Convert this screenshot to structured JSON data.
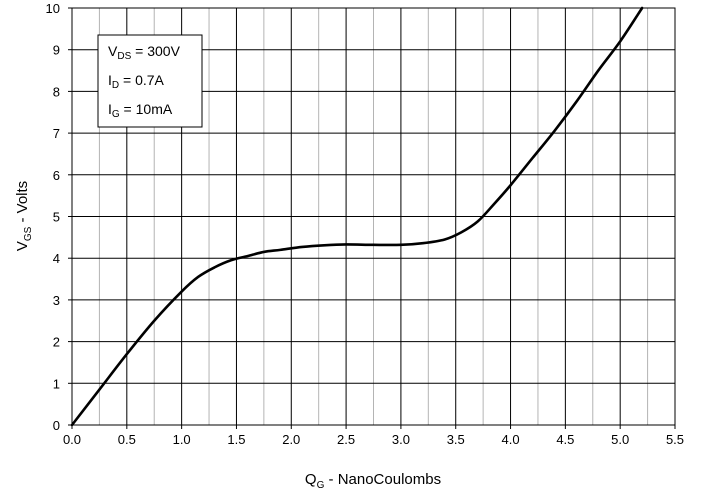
{
  "chart_data": {
    "type": "line",
    "title": "",
    "xlabel": {
      "main": "Q",
      "sub": "G",
      "rest": " - NanoCoulombs"
    },
    "ylabel": {
      "main": "V",
      "sub": "GS",
      "rest": " - Volts"
    },
    "xlim": [
      0,
      5.5
    ],
    "ylim": [
      0,
      10
    ],
    "x_ticks": [
      "0.0",
      "0.5",
      "1.0",
      "1.5",
      "2.0",
      "2.5",
      "3.0",
      "3.5",
      "4.0",
      "4.5",
      "5.0",
      "5.5"
    ],
    "y_ticks": [
      "0",
      "1",
      "2",
      "3",
      "4",
      "5",
      "6",
      "7",
      "8",
      "9",
      "10"
    ],
    "grid": true,
    "minor_x_grid": true,
    "series": [
      {
        "x": [
          0.0,
          0.25,
          0.5,
          0.75,
          1.0,
          1.15,
          1.3,
          1.45,
          1.6,
          1.75,
          1.9,
          2.1,
          2.3,
          2.5,
          2.75,
          3.0,
          3.2,
          3.4,
          3.55,
          3.7,
          3.85,
          4.0,
          4.2,
          4.4,
          4.6,
          4.8,
          5.0,
          5.2
        ],
        "y": [
          0.0,
          0.85,
          1.7,
          2.5,
          3.2,
          3.55,
          3.78,
          3.95,
          4.05,
          4.15,
          4.2,
          4.27,
          4.31,
          4.33,
          4.32,
          4.32,
          4.36,
          4.45,
          4.62,
          4.88,
          5.3,
          5.75,
          6.4,
          7.05,
          7.75,
          8.5,
          9.2,
          10.0
        ],
        "color": "#000000"
      }
    ],
    "annotations": [
      {
        "main": "V",
        "sub": "DS",
        "rest": " = 300V"
      },
      {
        "main": "I",
        "sub": "D",
        "rest": " = 0.7A"
      },
      {
        "main": "I",
        "sub": "G",
        "rest": " = 10mA"
      }
    ],
    "legend_placement": "top-left"
  }
}
